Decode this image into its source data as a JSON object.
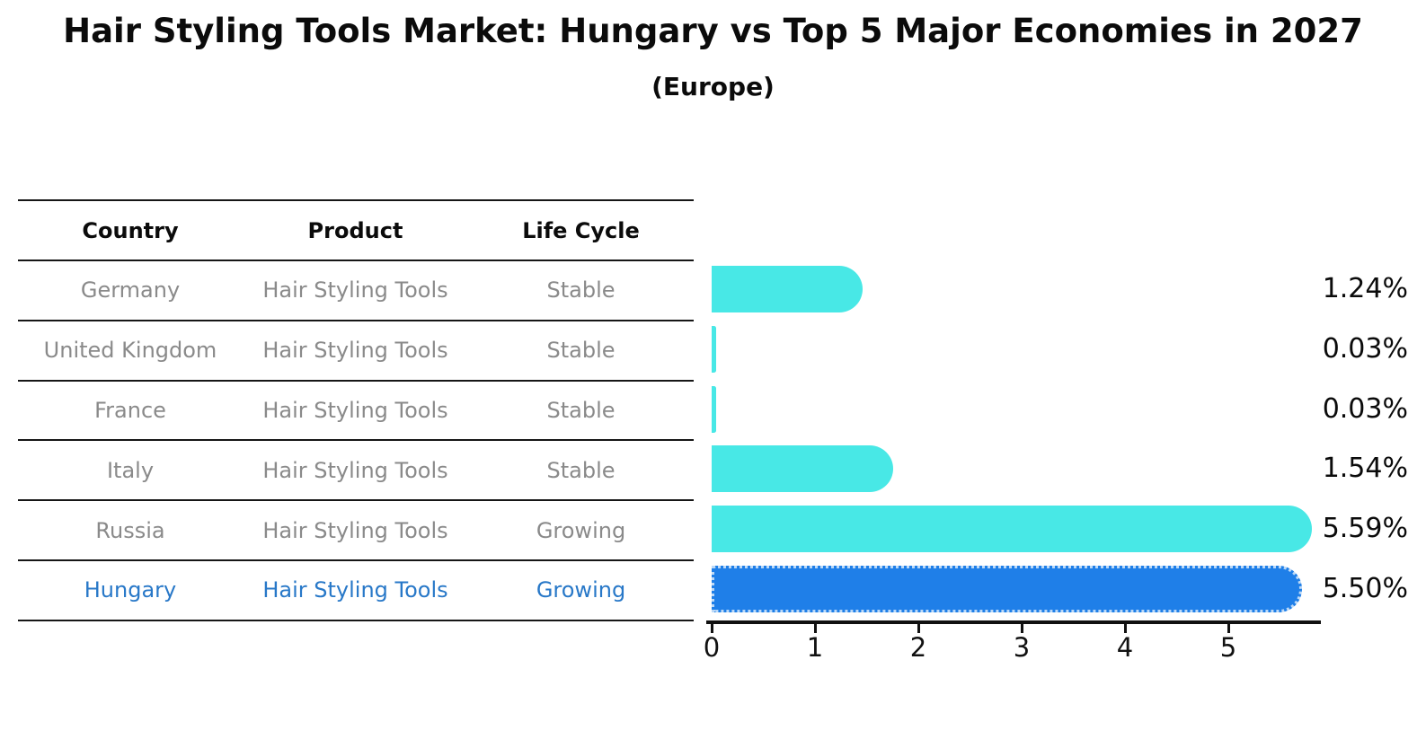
{
  "title": "Hair Styling Tools Market: Hungary vs Top 5 Major Economies in 2027",
  "subtitle": "(Europe)",
  "table": {
    "headers": [
      "Country",
      "Product",
      "Life Cycle"
    ],
    "rows": [
      {
        "country": "Germany",
        "product": "Hair Styling Tools",
        "life_cycle": "Stable",
        "highlight": false
      },
      {
        "country": "United Kingdom",
        "product": "Hair Styling Tools",
        "life_cycle": "Stable",
        "highlight": false
      },
      {
        "country": "France",
        "product": "Hair Styling Tools",
        "life_cycle": "Stable",
        "highlight": false
      },
      {
        "country": "Italy",
        "product": "Hair Styling Tools",
        "life_cycle": "Stable",
        "highlight": false
      },
      {
        "country": "Russia",
        "product": "Hair Styling Tools",
        "life_cycle": "Growing",
        "highlight": false
      },
      {
        "country": "Hungary",
        "product": "Hair Styling Tools",
        "life_cycle": "Growing",
        "highlight": true
      }
    ]
  },
  "chart_data": {
    "type": "bar",
    "orientation": "horizontal",
    "title": "Hair Styling Tools Market: Hungary vs Top 5 Major Economies in 2027 (Europe)",
    "categories": [
      "Germany",
      "United Kingdom",
      "France",
      "Italy",
      "Russia",
      "Hungary"
    ],
    "values": [
      1.24,
      0.03,
      0.03,
      1.54,
      5.59,
      5.5
    ],
    "value_labels": [
      "1.24%",
      "0.03%",
      "0.03%",
      "1.54%",
      "5.59%",
      "5.50%"
    ],
    "highlight_index": 5,
    "xlabel": "",
    "ylabel": "",
    "xlim": [
      0,
      5.88
    ],
    "x_ticks": [
      "0",
      "1",
      "2",
      "3",
      "4",
      "5"
    ],
    "grid": false,
    "legend": false
  },
  "colors": {
    "bar_default": "#48e8e6",
    "bar_highlight": "#1f7fe8",
    "highlight_text": "#2878c8",
    "row_text": "#8a8a8a",
    "axis": "#111111",
    "background": "#ffffff"
  }
}
